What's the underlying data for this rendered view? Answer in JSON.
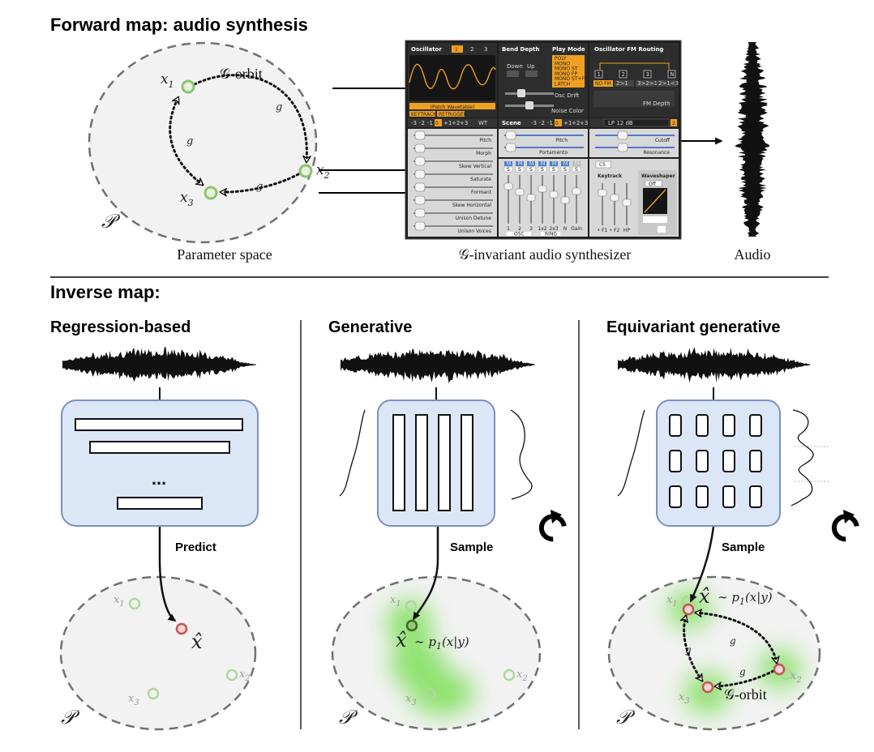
{
  "forward": {
    "title": "Forward map: audio synthesis",
    "param_space_label": "Parameter space",
    "synth_label": "𝒢-invariant audio synthesizer",
    "audio_label": "Audio",
    "orbit_label": "𝒢-orbit",
    "g": "g",
    "P": "𝒫",
    "x": "x",
    "sub1": "1",
    "sub2": "2",
    "sub3": "3"
  },
  "synth": {
    "oscillator": "Oscillator",
    "osc_tabs": [
      "1",
      "2",
      "3"
    ],
    "bend_depth": "Bend Depth",
    "play_mode": "Play Mode",
    "down": "Down",
    "up": "Up",
    "play_modes": [
      "POLY",
      "MONO",
      "MONO ST",
      "MONO FP",
      "MONO ST+FP",
      "LATCH"
    ],
    "fm_routing": "Oscillator FM Routing",
    "fm_nodes": [
      "1",
      "2",
      "3",
      "N"
    ],
    "fm_options": [
      "NO FM",
      "2>1",
      "3>2>1",
      "2>1<3"
    ],
    "fm_depth": "FM Depth",
    "patch": "(Patch Wavetable)",
    "keytrack_btn": "KEYTRACK",
    "retrigger_btn": "RETRIGGER",
    "osc_drift": "Osc Drift",
    "noise_color": "Noise Color",
    "octave_nums": [
      "-3",
      "-2",
      "-1",
      "0",
      "+1",
      "+2",
      "+3"
    ],
    "wt": "WT",
    "scene": "Scene",
    "filter": "LP 12 dB",
    "filter_num": "2",
    "left_sliders": [
      "Pitch",
      "Morph",
      "Skew Vertical",
      "Saturate",
      "Formant",
      "Skew Horizontal",
      "Unison Detune",
      "Unison Voices"
    ],
    "mid_sliders": [
      "Pitch",
      "Portamento"
    ],
    "right_sliders": [
      "Cutoff",
      "Resonance"
    ],
    "mixer_m": "M",
    "mixer_s": "S",
    "mixer_labels": [
      "1",
      "2",
      "3",
      "1x2",
      "2x3",
      "N",
      "Gain"
    ],
    "mixer_osc": "OSC",
    "mixer_ring": "RING",
    "c5": "C5",
    "keytrack": "Keytrack",
    "kt_labels": [
      "• F1",
      "• F2",
      "HP"
    ],
    "waveshaper": "Waveshaper",
    "ws_off": "Off"
  },
  "inverse": {
    "title": "Inverse map:",
    "panels": [
      {
        "title": "Regression-based",
        "action": "Predict",
        "dots": "..."
      },
      {
        "title": "Generative",
        "action": "Sample"
      },
      {
        "title": "Equivariant generative",
        "action": "Sample"
      }
    ],
    "xhat": "x̂",
    "posterior": "∼ p",
    "posterior_sub": "1",
    "posterior_arg": "(x|y)"
  },
  "colors": {
    "node_green": "#8dc36f",
    "node_red": "#c75353",
    "box_fill": "#dbe6f7",
    "box_stroke": "#7b90bd",
    "ellipse_fill": "#f2f2f2",
    "ellipse_stroke": "#707070",
    "synth_bg": "#2b2b2b",
    "synth_accent": "#f0a020"
  },
  "icons": {
    "refresh": "refresh-icon"
  }
}
